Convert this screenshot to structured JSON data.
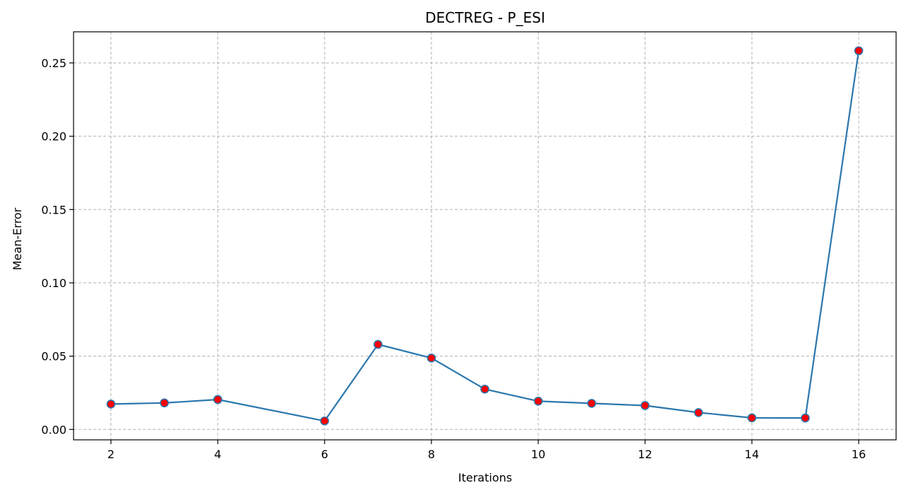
{
  "chart_data": {
    "type": "line",
    "title": "DECTREG - P_ESI",
    "xlabel": "Iterations",
    "ylabel": "Mean-Error",
    "x": [
      2,
      3,
      4,
      6,
      7,
      8,
      9,
      10,
      11,
      12,
      13,
      14,
      15,
      16
    ],
    "y": [
      0.0173,
      0.0181,
      0.0204,
      0.0058,
      0.058,
      0.0487,
      0.0275,
      0.0193,
      0.0178,
      0.0163,
      0.0115,
      0.0079,
      0.0078,
      0.2583
    ],
    "xlim": [
      1.3,
      16.7
    ],
    "ylim": [
      -0.0071,
      0.2712
    ],
    "xticks": [
      2,
      4,
      6,
      8,
      10,
      12,
      14,
      16
    ],
    "xtick_labels": [
      "2",
      "4",
      "6",
      "8",
      "10",
      "12",
      "14",
      "16"
    ],
    "yticks": [
      0.0,
      0.05,
      0.1,
      0.15,
      0.2,
      0.25
    ],
    "ytick_labels": [
      "0.00",
      "0.05",
      "0.10",
      "0.15",
      "0.20",
      "0.25"
    ],
    "grid": true,
    "colors": {
      "line": "#2b77ad",
      "marker_fill": "#ff0000",
      "marker_edge": "#2b77ad",
      "grid": "#b0b0b0"
    }
  }
}
